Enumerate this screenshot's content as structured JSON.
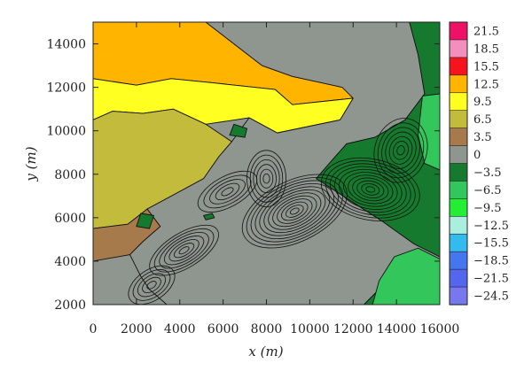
{
  "chart_data": {
    "type": "heatmap",
    "subtype": "filled-contour",
    "title": "",
    "xlabel": "x (m)",
    "ylabel": "y (m)",
    "xlim": [
      0,
      16000
    ],
    "ylim": [
      2000,
      15000
    ],
    "x_ticks": [
      "0",
      "2000",
      "4000",
      "6000",
      "8000",
      "10000",
      "12000",
      "14000",
      "16000"
    ],
    "y_ticks": [
      "2000",
      "4000",
      "6000",
      "8000",
      "10000",
      "12000",
      "14000"
    ],
    "grid": false,
    "colorbar": {
      "position": "right",
      "levels": [
        21.5,
        18.5,
        15.5,
        12.5,
        9.5,
        6.5,
        3.5,
        0,
        -3.5,
        -6.5,
        -9.5,
        -12.5,
        -15.5,
        -18.5,
        -21.5,
        -24.5
      ],
      "labels": [
        "21.5",
        "18.5",
        "15.5",
        "12.5",
        "9.5",
        "6.5",
        "3.5",
        "0",
        "−3.5",
        "−6.5",
        "−9.5",
        "−12.5",
        "−15.5",
        "−18.5",
        "−21.5",
        "−24.5"
      ],
      "colors": [
        "#ee1166",
        "#f28fbd",
        "#f5141e",
        "#ffb400",
        "#ffff22",
        "#c2bb3c",
        "#a77a4b",
        "#8f958f",
        "#157a2d",
        "#33c65b",
        "#22ee33",
        "#aaeedd",
        "#33bbee",
        "#4477ee",
        "#5566ee",
        "#7777ee"
      ]
    },
    "regions": [
      {
        "band": "12.5",
        "points": [
          [
            0,
            15000
          ],
          [
            5200,
            15000
          ],
          [
            6500,
            14000
          ],
          [
            7800,
            13000
          ],
          [
            9200,
            12500
          ],
          [
            11500,
            12000
          ],
          [
            12000,
            11500
          ],
          [
            9200,
            11200
          ],
          [
            8400,
            11900
          ],
          [
            5600,
            12200
          ],
          [
            3600,
            12400
          ],
          [
            2000,
            12100
          ],
          [
            0,
            12400
          ]
        ]
      },
      {
        "band": "9.5",
        "points": [
          [
            0,
            12400
          ],
          [
            2000,
            12100
          ],
          [
            3600,
            12400
          ],
          [
            5600,
            12200
          ],
          [
            8400,
            11900
          ],
          [
            9200,
            11200
          ],
          [
            12000,
            11500
          ],
          [
            11400,
            10500
          ],
          [
            8500,
            9900
          ],
          [
            7200,
            10600
          ],
          [
            5200,
            10300
          ],
          [
            3700,
            11000
          ],
          [
            2300,
            10800
          ],
          [
            900,
            10900
          ],
          [
            0,
            10500
          ]
        ]
      },
      {
        "band": "6.5",
        "points": [
          [
            0,
            10500
          ],
          [
            900,
            10900
          ],
          [
            2300,
            10800
          ],
          [
            3700,
            11000
          ],
          [
            5200,
            10300
          ],
          [
            6400,
            9500
          ],
          [
            5800,
            8800
          ],
          [
            5100,
            7800
          ],
          [
            3800,
            7100
          ],
          [
            2500,
            6400
          ],
          [
            1600,
            5700
          ],
          [
            0,
            5500
          ]
        ]
      },
      {
        "band": "3.5",
        "points": [
          [
            0,
            5500
          ],
          [
            1600,
            5700
          ],
          [
            2500,
            6400
          ],
          [
            3100,
            5600
          ],
          [
            2300,
            4900
          ],
          [
            1700,
            4300
          ],
          [
            0,
            4000
          ]
        ]
      },
      {
        "band": "0",
        "points": [
          [
            1700,
            4300
          ],
          [
            2300,
            4900
          ],
          [
            3100,
            5600
          ],
          [
            2500,
            6400
          ],
          [
            3800,
            7100
          ],
          [
            5100,
            7800
          ],
          [
            5800,
            8800
          ],
          [
            6400,
            9500
          ],
          [
            7200,
            10600
          ],
          [
            8500,
            9900
          ],
          [
            11400,
            10500
          ],
          [
            12000,
            11500
          ],
          [
            11500,
            12000
          ],
          [
            9200,
            12500
          ],
          [
            7800,
            13000
          ],
          [
            6500,
            14000
          ],
          [
            5200,
            15000
          ],
          [
            14600,
            15000
          ],
          [
            15000,
            13500
          ],
          [
            15300,
            11700
          ],
          [
            14400,
            10500
          ],
          [
            13000,
            9700
          ],
          [
            11700,
            9400
          ],
          [
            10900,
            8500
          ],
          [
            10300,
            7800
          ],
          [
            13400,
            5800
          ],
          [
            14800,
            4800
          ],
          [
            16000,
            4200
          ],
          [
            16000,
            3200
          ],
          [
            14400,
            3300
          ],
          [
            13200,
            2700
          ],
          [
            12500,
            2000
          ],
          [
            3400,
            2000
          ],
          [
            2600,
            2700
          ],
          [
            2200,
            3300
          ]
        ]
      },
      {
        "band": "-3.5",
        "points": [
          [
            12500,
            2000
          ],
          [
            13200,
            2700
          ],
          [
            14400,
            3300
          ],
          [
            16000,
            3200
          ],
          [
            16000,
            4200
          ],
          [
            14800,
            4800
          ],
          [
            13400,
            5800
          ],
          [
            10300,
            7800
          ],
          [
            10900,
            8500
          ],
          [
            11700,
            9400
          ],
          [
            13000,
            9700
          ],
          [
            14400,
            10500
          ],
          [
            15300,
            11700
          ],
          [
            15000,
            13500
          ],
          [
            14600,
            15000
          ],
          [
            16000,
            15000
          ],
          [
            16000,
            2000
          ]
        ]
      },
      {
        "band": "-6.5",
        "points": [
          [
            15200,
            11600
          ],
          [
            16000,
            11700
          ],
          [
            16000,
            8200
          ],
          [
            15300,
            8500
          ],
          [
            15000,
            9800
          ]
        ]
      },
      {
        "band": "-6.5",
        "points": [
          [
            12900,
            2000
          ],
          [
            16000,
            2000
          ],
          [
            16000,
            4100
          ],
          [
            15000,
            4600
          ],
          [
            13900,
            4200
          ],
          [
            13200,
            3100
          ]
        ]
      },
      {
        "band": "-3.5",
        "points": [
          [
            2000,
            5600
          ],
          [
            2600,
            5500
          ],
          [
            2800,
            6100
          ],
          [
            2200,
            6200
          ]
        ]
      },
      {
        "band": "-3.5",
        "points": [
          [
            5200,
            5900
          ],
          [
            5600,
            6000
          ],
          [
            5500,
            6200
          ],
          [
            5100,
            6100
          ]
        ]
      },
      {
        "band": "-3.5",
        "points": [
          [
            6300,
            9800
          ],
          [
            7000,
            9700
          ],
          [
            7100,
            10100
          ],
          [
            6500,
            10300
          ]
        ]
      }
    ]
  }
}
